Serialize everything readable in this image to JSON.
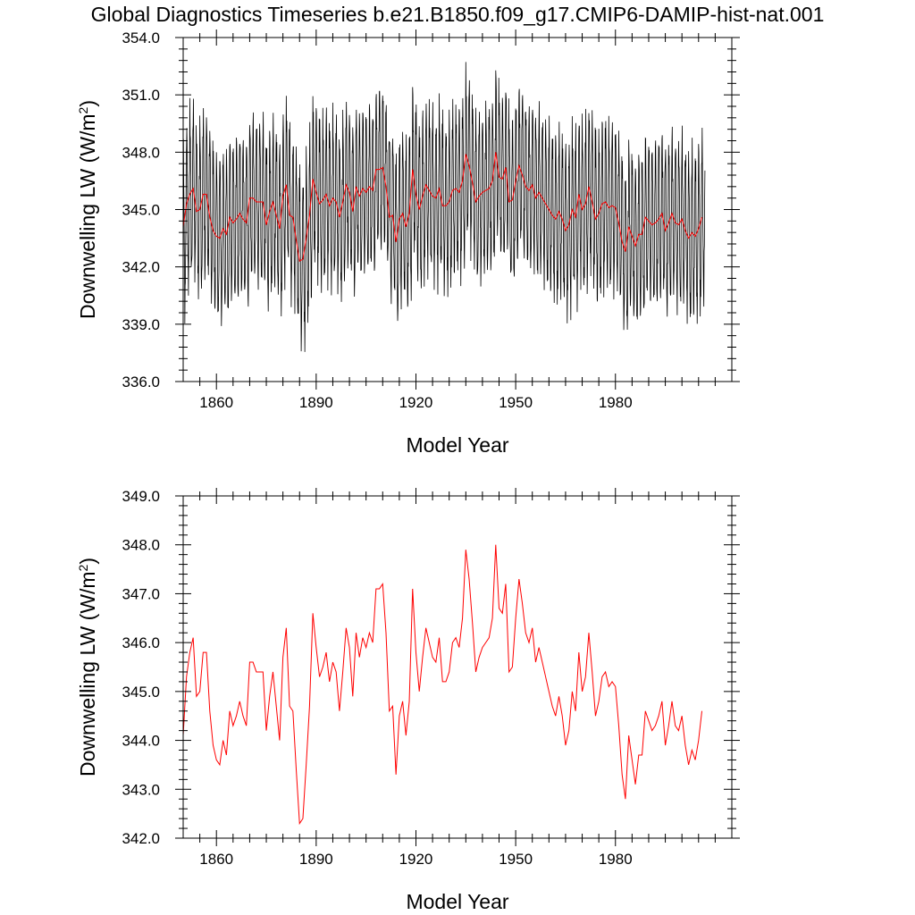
{
  "title": "Global Diagnostics Timeseries b.e21.B1850.f09_g17.CMIP6-DAMIP-hist-nat.001",
  "colors": {
    "monthly": "#000000",
    "annual": "#ff0000",
    "frame": "#000000"
  },
  "chart_data": [
    {
      "type": "line",
      "xlabel": "Model Year",
      "ylabel_main": "Downwelling LW (W/m",
      "ylabel_sup": "2",
      "ylabel_end": ")",
      "xlim": [
        1850,
        2015
      ],
      "ylim": [
        336.0,
        354.0
      ],
      "x_ticks": [
        1860,
        1890,
        1920,
        1950,
        1980
      ],
      "x_tick_labels": [
        "1860",
        "1890",
        "1920",
        "1950",
        "1980"
      ],
      "y_ticks": [
        336.0,
        339.0,
        342.0,
        345.0,
        348.0,
        351.0,
        354.0
      ],
      "y_tick_labels": [
        "336.0",
        "339.0",
        "342.0",
        "345.0",
        "348.0",
        "351.0",
        "354.0"
      ],
      "grid": false,
      "series": [
        {
          "kind": "monthly",
          "color": "#000000",
          "seasonal_amplitude": 4.0,
          "values_ref": "annual_means"
        },
        {
          "kind": "annual",
          "color": "#ff0000",
          "values_ref": "annual_means"
        }
      ]
    },
    {
      "type": "line",
      "xlabel": "Model Year",
      "ylabel_main": "Downwelling LW (W/m",
      "ylabel_sup": "2",
      "ylabel_end": ")",
      "xlim": [
        1850,
        2015
      ],
      "ylim": [
        342.0,
        349.0
      ],
      "x_ticks": [
        1860,
        1890,
        1920,
        1950,
        1980
      ],
      "x_tick_labels": [
        "1860",
        "1890",
        "1920",
        "1950",
        "1980"
      ],
      "y_ticks": [
        342.0,
        343.0,
        344.0,
        345.0,
        346.0,
        347.0,
        348.0,
        349.0
      ],
      "y_tick_labels": [
        "342.0",
        "343.0",
        "344.0",
        "345.0",
        "346.0",
        "347.0",
        "348.0",
        "349.0"
      ],
      "grid": false,
      "series": [
        {
          "kind": "annual",
          "color": "#ff0000",
          "values_ref": "annual_means"
        }
      ]
    }
  ],
  "annual_means": {
    "x_start": 1850,
    "values": [
      344.1,
      345.3,
      345.8,
      346.1,
      344.9,
      345.0,
      345.8,
      345.8,
      344.6,
      343.9,
      343.6,
      343.5,
      344.0,
      343.7,
      344.6,
      344.3,
      344.5,
      344.8,
      344.5,
      344.3,
      345.6,
      345.6,
      345.4,
      345.4,
      345.4,
      344.2,
      344.9,
      345.4,
      344.7,
      344.0,
      345.7,
      346.3,
      344.7,
      344.6,
      343.4,
      342.3,
      342.4,
      343.5,
      344.7,
      346.6,
      345.9,
      345.3,
      345.5,
      345.8,
      345.2,
      345.6,
      345.4,
      344.6,
      345.4,
      346.3,
      345.9,
      344.9,
      346.2,
      345.7,
      346.1,
      345.9,
      346.2,
      346.0,
      347.1,
      347.1,
      347.2,
      346.2,
      344.6,
      344.7,
      343.3,
      344.5,
      344.8,
      344.1,
      344.8,
      347.1,
      345.8,
      345.0,
      345.7,
      346.3,
      346.0,
      345.7,
      345.6,
      346.1,
      345.2,
      345.2,
      345.4,
      346.0,
      346.1,
      345.9,
      346.5,
      347.9,
      347.3,
      346.4,
      345.4,
      345.7,
      345.9,
      346.0,
      346.1,
      346.5,
      348.0,
      346.7,
      346.6,
      347.2,
      345.4,
      345.5,
      346.5,
      347.3,
      346.8,
      346.2,
      346.0,
      346.3,
      345.6,
      345.9,
      345.6,
      345.3,
      345.0,
      344.7,
      344.5,
      344.9,
      344.5,
      343.9,
      344.2,
      345.0,
      344.6,
      345.8,
      345.0,
      345.3,
      346.2,
      345.4,
      344.5,
      344.8,
      345.3,
      345.4,
      345.1,
      345.2,
      345.1,
      344.3,
      343.3,
      342.8,
      344.1,
      343.6,
      343.1,
      343.7,
      343.7,
      344.6,
      344.4,
      344.2,
      344.3,
      344.5,
      344.8,
      343.9,
      344.3,
      344.8,
      344.3,
      344.2,
      344.5,
      343.9,
      343.5,
      343.8,
      343.6,
      344.0,
      344.6
    ]
  }
}
